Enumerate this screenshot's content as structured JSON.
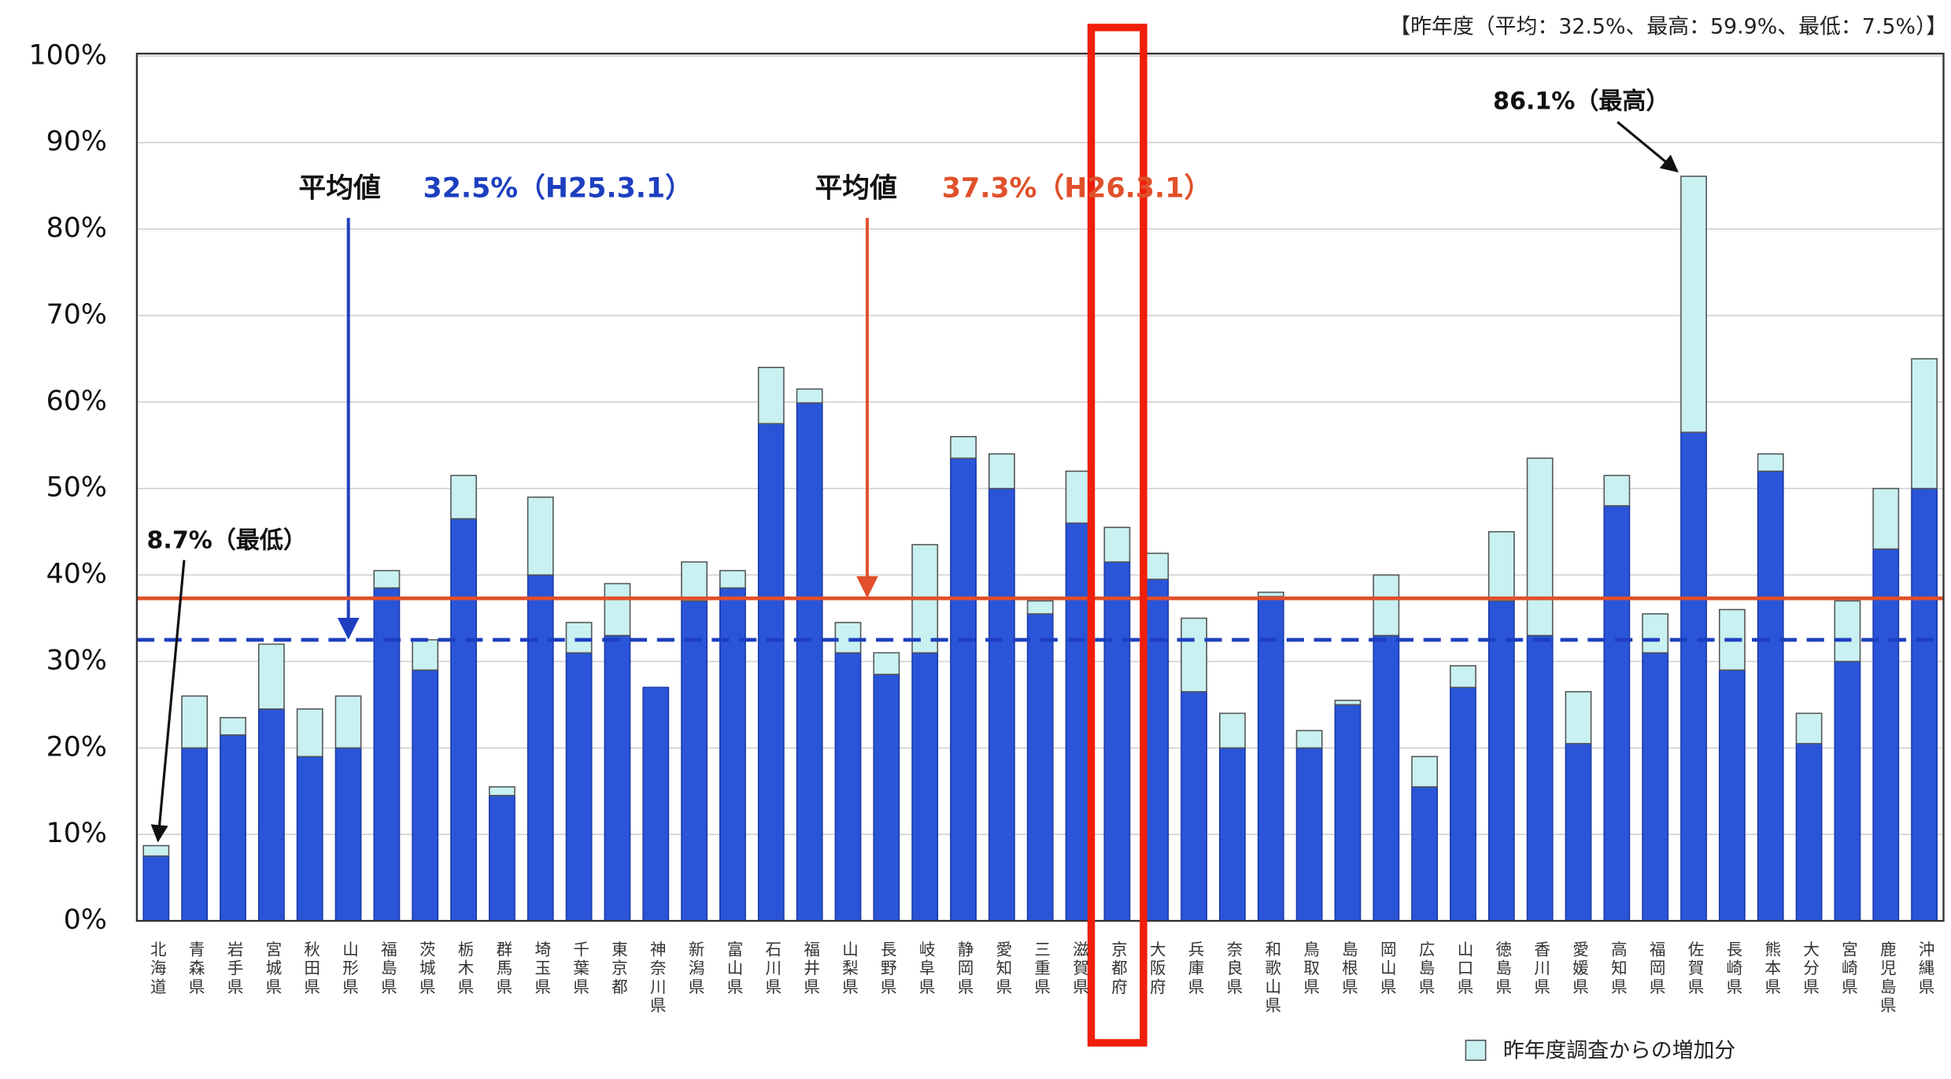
{
  "chart_data": {
    "type": "stacked_bar",
    "note": "【昨年度（平均：32.5%、最高：59.9%、最低：7.5%）】",
    "categories": [
      "北海道",
      "青森県",
      "岩手県",
      "宮城県",
      "秋田県",
      "山形県",
      "福島県",
      "茨城県",
      "栃木県",
      "群馬県",
      "埼玉県",
      "千葉県",
      "東京都",
      "神奈川県",
      "新潟県",
      "富山県",
      "石川県",
      "福井県",
      "山梨県",
      "長野県",
      "岐阜県",
      "静岡県",
      "愛知県",
      "三重県",
      "滋賀県",
      "京都府",
      "大阪府",
      "兵庫県",
      "奈良県",
      "和歌山県",
      "鳥取県",
      "島根県",
      "岡山県",
      "広島県",
      "山口県",
      "徳島県",
      "香川県",
      "愛媛県",
      "高知県",
      "福岡県",
      "佐賀県",
      "長崎県",
      "熊本県",
      "大分県",
      "宮崎県",
      "鹿児島県",
      "沖縄県"
    ],
    "series": [
      {
        "color": "#2a55d8",
        "values": [
          7.5,
          20,
          21.5,
          24.5,
          19,
          20,
          38.5,
          29,
          46.5,
          14.5,
          40,
          31,
          33,
          27,
          37,
          38.5,
          57.5,
          59.9,
          31,
          28.5,
          31,
          53.5,
          50,
          35.5,
          46,
          41.5,
          39.5,
          26.5,
          20,
          37.5,
          20,
          25,
          33,
          15.5,
          27,
          37,
          33,
          20.5,
          48,
          31,
          56.5,
          29,
          52,
          20.5,
          30,
          43,
          50
        ]
      },
      {
        "name": "昨年度調査からの増加分",
        "color": "#c9f1f1",
        "values": [
          1.2,
          6,
          2,
          7.5,
          5.5,
          6,
          2,
          3.5,
          5,
          1,
          9,
          3.5,
          6,
          0,
          4.5,
          2,
          6.5,
          1.6,
          3.5,
          2.5,
          12.5,
          2.5,
          4,
          1.5,
          6,
          4,
          3,
          8.5,
          4,
          0.5,
          2,
          0.5,
          7,
          3.5,
          2.5,
          8,
          20.5,
          6,
          3.5,
          4.5,
          29.6,
          7,
          2,
          3.5,
          7,
          7,
          15
        ]
      }
    ],
    "ylim": [
      0,
      100
    ],
    "yticks": [
      {
        "value": 0,
        "label": "0%"
      },
      {
        "value": 10,
        "label": "10%"
      },
      {
        "value": 20,
        "label": "20%"
      },
      {
        "value": 30,
        "label": "30%"
      },
      {
        "value": 40,
        "label": "40%"
      },
      {
        "value": 50,
        "label": "50%"
      },
      {
        "value": 60,
        "label": "60%"
      },
      {
        "value": 70,
        "label": "70%"
      },
      {
        "value": 80,
        "label": "80%"
      },
      {
        "value": 90,
        "label": "90%"
      },
      {
        "value": 100,
        "label": "100%"
      }
    ],
    "grid": true,
    "reference_lines": [
      {
        "value": 32.5,
        "color": "#1d3fbf",
        "dashed": true,
        "prefix": "平均値",
        "label": "32.5%（H25.3.1）"
      },
      {
        "value": 37.3,
        "color": "#e0502a",
        "dashed": false,
        "prefix": "平均値",
        "label": "37.3%（H26.3.1）"
      }
    ],
    "annotations": [
      {
        "text": "86.1%（最高）",
        "value": 86.1
      },
      {
        "text": "8.7%（最低）",
        "value": 8.7
      }
    ]
  }
}
